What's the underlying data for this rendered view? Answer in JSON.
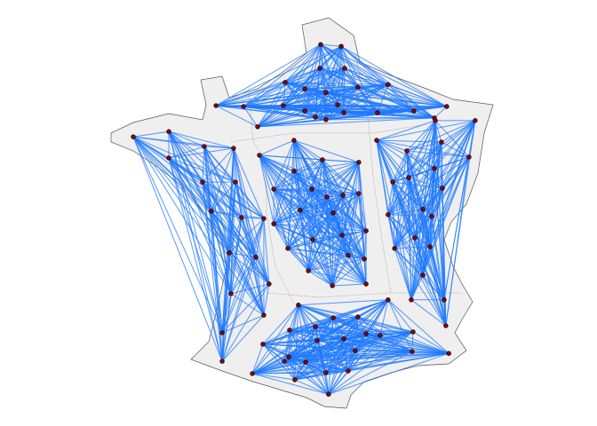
{
  "map": {
    "clusters": [
      {
        "nodes": [
          [
            2.35,
            50.53
          ],
          [
            3.05,
            50.49
          ],
          [
            2.32,
            49.99
          ],
          [
            3.17,
            49.99
          ],
          [
            1.14,
            49.67
          ],
          [
            1.81,
            49.52
          ],
          [
            2.53,
            49.44
          ],
          [
            3.62,
            49.56
          ],
          [
            4.65,
            49.62
          ],
          [
            -1.22,
            49.14
          ],
          [
            -0.28,
            49.12
          ],
          [
            1.08,
            49.14
          ],
          [
            0.2,
            48.66
          ],
          [
            2.17,
            48.88
          ],
          [
            2.53,
            48.82
          ],
          [
            2.93,
            49.16
          ],
          [
            1.81,
            49.02
          ],
          [
            3.14,
            48.98
          ],
          [
            5.53,
            49.02
          ],
          [
            4.29,
            48.98
          ],
          [
            6.65,
            49.12
          ],
          [
            6.23,
            48.86
          ]
        ]
      },
      {
        "nodes": [
          [
            -4.04,
            48.43
          ],
          [
            -2.83,
            48.55
          ],
          [
            -1.62,
            48.21
          ],
          [
            -0.62,
            48.17
          ],
          [
            -2.83,
            47.95
          ],
          [
            -1.68,
            47.4
          ],
          [
            -0.56,
            47.4
          ],
          [
            -1.38,
            46.74
          ],
          [
            -0.35,
            46.59
          ],
          [
            0.41,
            46.57
          ],
          [
            -0.77,
            45.79
          ],
          [
            0.14,
            45.69
          ],
          [
            -0.71,
            44.86
          ],
          [
            0.59,
            45.08
          ],
          [
            0.41,
            44.37
          ],
          [
            -1.01,
            43.97
          ],
          [
            -1.01,
            43.32
          ]
        ]
      },
      {
        "nodes": [
          [
            0.26,
            48.01
          ],
          [
            1.44,
            48.35
          ],
          [
            2.41,
            47.91
          ],
          [
            3.65,
            47.85
          ],
          [
            1.44,
            47.65
          ],
          [
            0.75,
            47.24
          ],
          [
            2.05,
            47.24
          ],
          [
            2.56,
            47.06
          ],
          [
            3.11,
            47.1
          ],
          [
            3.65,
            47.14
          ],
          [
            1.65,
            46.76
          ],
          [
            2.78,
            46.7
          ],
          [
            0.75,
            46.45
          ],
          [
            2.08,
            46.09
          ],
          [
            3.08,
            46.19
          ],
          [
            3.9,
            46.29
          ],
          [
            1.23,
            45.89
          ],
          [
            3.29,
            45.73
          ],
          [
            3.84,
            45.65
          ],
          [
            1.93,
            45.38
          ],
          [
            2.75,
            45.04
          ],
          [
            3.9,
            45.08
          ]
        ]
      },
      {
        "nodes": [
          [
            4.26,
            48.35
          ],
          [
            5.29,
            48.11
          ],
          [
            6.26,
            48.8
          ],
          [
            7.62,
            48.8
          ],
          [
            6.47,
            48.31
          ],
          [
            7.41,
            47.97
          ],
          [
            6.23,
            47.71
          ],
          [
            5.35,
            47.5
          ],
          [
            4.81,
            47.4
          ],
          [
            6.5,
            47.26
          ],
          [
            4.65,
            46.66
          ],
          [
            5.84,
            46.78
          ],
          [
            6.14,
            46.62
          ],
          [
            5.56,
            46.13
          ],
          [
            4.87,
            45.89
          ],
          [
            6.08,
            45.93
          ],
          [
            5.84,
            45.28
          ],
          [
            5.44,
            44.72
          ],
          [
            6.56,
            44.72
          ],
          [
            6.62,
            44.13
          ]
        ]
      },
      {
        "nodes": [
          [
            1.59,
            44.6
          ],
          [
            2.78,
            44.31
          ],
          [
            3.62,
            44.33
          ],
          [
            4.65,
            44.72
          ],
          [
            1.29,
            44.03
          ],
          [
            2.17,
            44.11
          ],
          [
            3.9,
            43.95
          ],
          [
            5.5,
            43.99
          ],
          [
            0.38,
            43.71
          ],
          [
            2.23,
            43.79
          ],
          [
            3.14,
            43.83
          ],
          [
            4.38,
            43.91
          ],
          [
            1.26,
            43.42
          ],
          [
            3.53,
            43.56
          ],
          [
            5.47,
            43.54
          ],
          [
            6.72,
            43.5
          ],
          [
            0.02,
            43.04
          ],
          [
            1.11,
            43.32
          ],
          [
            2.53,
            43.06
          ],
          [
            1.84,
            43.3
          ],
          [
            1.47,
            42.9
          ],
          [
            2.62,
            42.57
          ],
          [
            3.29,
            43.1
          ]
        ]
      }
    ]
  }
}
